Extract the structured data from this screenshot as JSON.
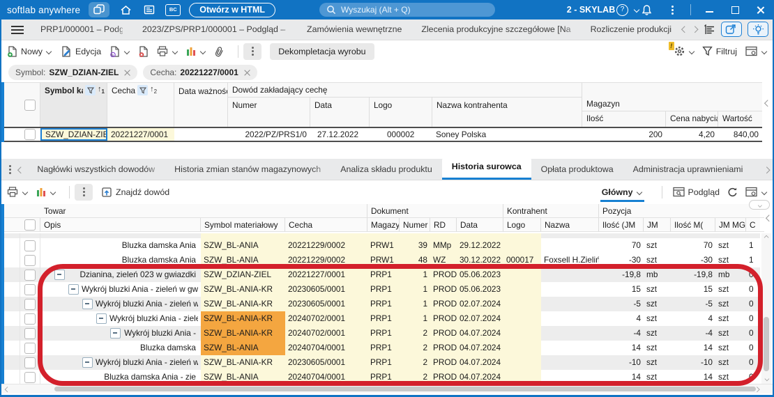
{
  "titlebar": {
    "app_name": "softlab anywhere",
    "bc_label": "BC",
    "open_html_label": "Otwórz w HTML",
    "search_placeholder": "Wyszukaj (Alt + Q)",
    "company_selector": "2 - SKYLAB"
  },
  "main_tabs": {
    "tabs": [
      {
        "label": "PRP1/000001 – Podgląd –",
        "active": false,
        "fade": true
      },
      {
        "label": "2023/ZPS/PRP1/000001 – Podgląd – S",
        "active": false,
        "fade": true
      },
      {
        "label": "Zamówienia wewnętrzne",
        "active": false,
        "fade": false
      },
      {
        "label": "Zlecenia produkcyjne szczegółowe [Na",
        "active": false,
        "fade": true
      },
      {
        "label": "Rozliczenie produkcji",
        "active": false,
        "fade": false
      },
      {
        "label": "Cechy",
        "active": true,
        "fade": false
      }
    ]
  },
  "toolbar_top": {
    "new_label": "Nowy",
    "edit_label": "Edycja",
    "decompletion_label": "Dekompletacja wyrobu",
    "filter_label": "Filtruj"
  },
  "filter_chips": [
    {
      "label": "Symbol:",
      "value": "SZW_DZIAN-ZIEL"
    },
    {
      "label": "Cecha:",
      "value": "20221227/0001"
    }
  ],
  "upper_table": {
    "group_headers": {
      "dowod": "Dowód zakładający cechę",
      "magazyn": "Magazyn"
    },
    "columns": {
      "symbol": "Symbol kartote",
      "cecha": "Cecha",
      "data_waznosci": "Data ważności",
      "numer": "Numer",
      "data": "Data",
      "logo": "Logo",
      "nazwa_kontrahenta": "Nazwa kontrahenta",
      "ilosc": "Ilość",
      "cena_nabycia": "Cena nabycia",
      "wartosc": "Wartość"
    },
    "sort_badges": {
      "symbol": "1",
      "cecha": "2"
    },
    "row": {
      "symbol": "SZW_DZIAN-ZIEL",
      "cecha": "20221227/0001",
      "data_waznosci": "",
      "numer": "2022/PZ/PRS1/0",
      "data": "27.12.2022",
      "logo": "000002",
      "nazwa_kontrahenta": "Soney Polska",
      "ilosc": "200",
      "cena_nabycia": "4,20",
      "wartosc": "840,00"
    }
  },
  "section_tabs": {
    "tabs": [
      {
        "label": "Nagłówki wszystkich dowodów",
        "active": false,
        "fade": true
      },
      {
        "label": "Historia zmian stanów magazynowych",
        "active": false,
        "fade": true
      },
      {
        "label": "Analiza składu produktu",
        "active": false,
        "fade": false
      },
      {
        "label": "Historia surowca",
        "active": true,
        "fade": false
      },
      {
        "label": "Opłata produktowa",
        "active": false,
        "fade": false
      },
      {
        "label": "Administracja uprawnieniami",
        "active": false,
        "fade": false
      },
      {
        "label": "Histor",
        "active": false,
        "fade": true
      }
    ]
  },
  "toolbar_section": {
    "find_label": "Znajdź dowód",
    "view_selector": "Główny",
    "preview_label": "Podgląd"
  },
  "lower_table": {
    "group_headers": {
      "towar": "Towar",
      "dokument": "Dokument",
      "kontrahent": "Kontrahent",
      "pozycja": "Pozycja"
    },
    "columns": {
      "opis": "Opis",
      "symbol": "Symbol materiałowy",
      "cecha": "Cecha",
      "magazyn": "Magazy",
      "numer": "Numer",
      "rd": "RD",
      "data": "Data",
      "logo": "Logo",
      "nazwa": "Nazwa",
      "ilosc_jm": "Ilość (JM",
      "jm": "JM",
      "ilosc_mg": "Ilość M(",
      "jm_mg": "JM MG",
      "cena": "C"
    },
    "highlight_color": "#f4a640",
    "rows": [
      {
        "partial": true,
        "opis": "",
        "indent": 0,
        "expander": false,
        "symbol": "",
        "highlight": false,
        "cecha": "",
        "magazyn": "",
        "numer": "",
        "rd": "",
        "data": "",
        "logo": "",
        "nazwa": "",
        "ilosc_jm": "",
        "jm": "",
        "ilosc_mg": "",
        "jm_mg": "",
        "c": "",
        "alt": true
      },
      {
        "partial": false,
        "opis": "Bluzka damska Ania",
        "indent": 0,
        "expander": false,
        "symbol": "SZW_BL-ANIA",
        "highlight": false,
        "cecha": "20221229/0002",
        "magazyn": "PRW1",
        "numer": "39",
        "rd": "MMp",
        "data": "29.12.2022",
        "logo": "",
        "nazwa": "",
        "ilosc_jm": "70",
        "jm": "szt",
        "ilosc_mg": "70",
        "jm_mg": "szt",
        "c": "1",
        "alt": false
      },
      {
        "partial": false,
        "opis": "Bluzka damska Ania",
        "indent": 0,
        "expander": false,
        "symbol": "SZW_BL-ANIA",
        "highlight": false,
        "cecha": "20221229/0002",
        "magazyn": "PRW1",
        "numer": "48",
        "rd": "WZ",
        "data": "30.12.2022",
        "logo": "000017",
        "nazwa": "Foxsell H.Zieliński",
        "ilosc_jm": "-30",
        "jm": "szt",
        "ilosc_mg": "-30",
        "jm_mg": "szt",
        "c": "1",
        "alt": false
      },
      {
        "partial": false,
        "opis": "Dzianina, zieleń 023 w gwiazdki",
        "indent": 0,
        "expander": true,
        "symbol": "SZW_DZIAN-ZIEL",
        "highlight": false,
        "cecha": "20221227/0001",
        "magazyn": "PRP1",
        "numer": "1",
        "rd": "PROD",
        "data": "05.06.2023",
        "logo": "",
        "nazwa": "",
        "ilosc_jm": "-19,8",
        "jm": "mb",
        "ilosc_mg": "-19,8",
        "jm_mg": "mb",
        "c": "0",
        "alt": true
      },
      {
        "partial": false,
        "opis": "Wykrój bluzki Ania - zieleń w gwia",
        "indent": 1,
        "expander": true,
        "symbol": "SZW_BL-ANIA-KR",
        "highlight": false,
        "cecha": "20230605/0001",
        "magazyn": "PRP1",
        "numer": "1",
        "rd": "PROD",
        "data": "05.06.2023",
        "logo": "",
        "nazwa": "",
        "ilosc_jm": "15",
        "jm": "szt",
        "ilosc_mg": "15",
        "jm_mg": "szt",
        "c": "0",
        "alt": false
      },
      {
        "partial": false,
        "opis": "Wykrój bluzki Ania - zieleń w g",
        "indent": 2,
        "expander": true,
        "symbol": "SZW_BL-ANIA-KR",
        "highlight": false,
        "cecha": "20230605/0001",
        "magazyn": "PRP1",
        "numer": "1",
        "rd": "PROD",
        "data": "02.07.2024",
        "logo": "",
        "nazwa": "",
        "ilosc_jm": "-5",
        "jm": "szt",
        "ilosc_mg": "-5",
        "jm_mg": "szt",
        "c": "0",
        "alt": true
      },
      {
        "partial": false,
        "opis": "Wykrój bluzki Ania - ziele",
        "indent": 3,
        "expander": true,
        "symbol": "SZW_BL-ANIA-KR",
        "highlight": true,
        "cecha": "20240702/0001",
        "magazyn": "PRP1",
        "numer": "1",
        "rd": "PROD",
        "data": "02.07.2024",
        "logo": "",
        "nazwa": "",
        "ilosc_jm": "4",
        "jm": "szt",
        "ilosc_mg": "4",
        "jm_mg": "szt",
        "c": "0",
        "alt": false
      },
      {
        "partial": false,
        "opis": "Wykrój bluzki Ania -",
        "indent": 4,
        "expander": true,
        "symbol": "SZW_BL-ANIA-KR",
        "highlight": true,
        "cecha": "20240702/0001",
        "magazyn": "PRP1",
        "numer": "2",
        "rd": "PROD",
        "data": "04.07.2024",
        "logo": "",
        "nazwa": "",
        "ilosc_jm": "-4",
        "jm": "szt",
        "ilosc_mg": "-4",
        "jm_mg": "szt",
        "c": "0",
        "alt": true
      },
      {
        "partial": false,
        "opis": "Bluzka damska",
        "indent": 5,
        "expander": false,
        "symbol": "SZW_BL-ANIA",
        "highlight": true,
        "cecha": "20240704/0001",
        "magazyn": "PRP1",
        "numer": "2",
        "rd": "PROD",
        "data": "04.07.2024",
        "logo": "",
        "nazwa": "",
        "ilosc_jm": "14",
        "jm": "szt",
        "ilosc_mg": "14",
        "jm_mg": "szt",
        "c": "0",
        "alt": false
      },
      {
        "partial": false,
        "opis": "Wykrój bluzki Ania - zieleń w g",
        "indent": 2,
        "expander": true,
        "symbol": "SZW_BL-ANIA-KR",
        "highlight": false,
        "cecha": "20230605/0001",
        "magazyn": "PRP1",
        "numer": "2",
        "rd": "PROD",
        "data": "04.07.2024",
        "logo": "",
        "nazwa": "",
        "ilosc_jm": "-10",
        "jm": "szt",
        "ilosc_mg": "-10",
        "jm_mg": "szt",
        "c": "0",
        "alt": true
      },
      {
        "partial": false,
        "opis": "Bluzka damska Ania - zie",
        "indent": 0,
        "expander": false,
        "symbol": "SZW_BL-ANIA",
        "highlight": false,
        "cecha": "20240704/0001",
        "magazyn": "PRP1",
        "numer": "2",
        "rd": "PROD",
        "data": "04.07.2024",
        "logo": "",
        "nazwa": "",
        "ilosc_jm": "14",
        "jm": "szt",
        "ilosc_mg": "14",
        "jm_mg": "szt",
        "c": "0",
        "alt": false
      }
    ]
  },
  "annotation_color": "#d3202b"
}
